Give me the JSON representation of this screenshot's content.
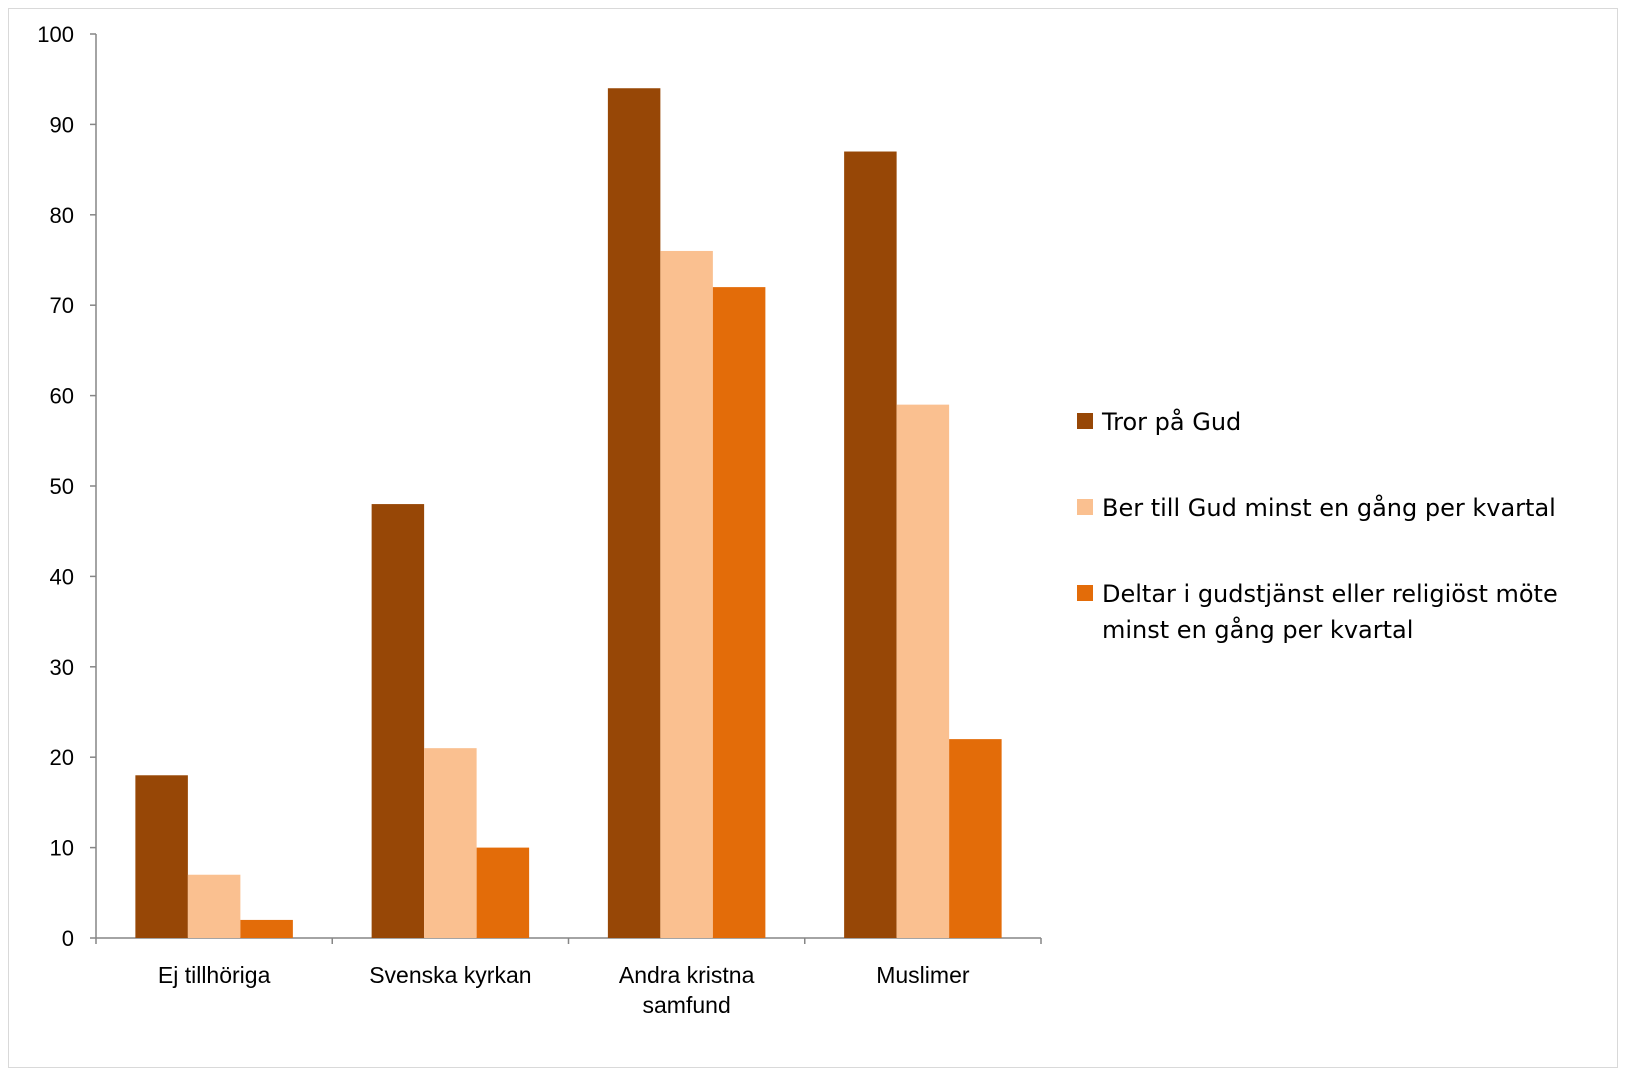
{
  "chart_data": {
    "type": "bar",
    "categories": [
      [
        "Ej tillhöriga"
      ],
      [
        "Svenska kyrkan"
      ],
      [
        "Andra kristna",
        "samfund"
      ],
      [
        "Muslimer"
      ]
    ],
    "series": [
      {
        "name": "Tror på Gud",
        "color": "#974706",
        "values": [
          18,
          48,
          94,
          87
        ]
      },
      {
        "name": "Ber till Gud minst en gång per kvartal",
        "color": "#FAC090",
        "values": [
          7,
          21,
          76,
          59
        ]
      },
      {
        "name": "Deltar i gudstjänst eller religiöst möte minst en gång per kvartal",
        "color": "#E36C09",
        "values": [
          2,
          10,
          72,
          22
        ]
      }
    ],
    "legend_lines": [
      [
        "Tror på Gud"
      ],
      [
        "Ber till Gud minst en gång per kvartal"
      ],
      [
        "Deltar i gudstjänst eller religiöst möte",
        "minst en gång per kvartal"
      ]
    ],
    "y_ticks": [
      "0",
      "10",
      "20",
      "30",
      "40",
      "50",
      "60",
      "70",
      "80",
      "90",
      "100"
    ],
    "ylim": [
      0,
      100
    ],
    "grid": false,
    "legend_position": "right"
  }
}
